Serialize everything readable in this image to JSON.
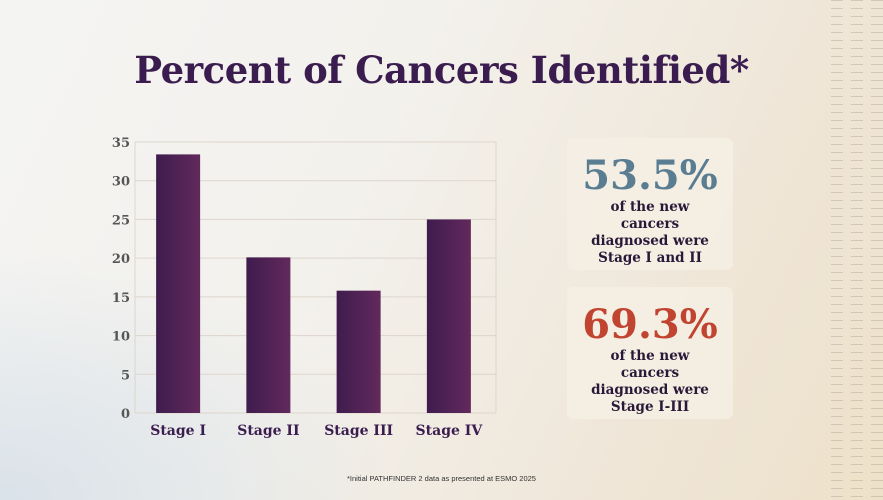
{
  "title": "Percent of Cancers Identified*",
  "chart_data": {
    "type": "bar",
    "title": "Percent of Cancers Identified*",
    "categories": [
      "Stage I",
      "Stage II",
      "Stage III",
      "Stage IV"
    ],
    "values": [
      33.4,
      20.1,
      15.8,
      25.0
    ],
    "ylim": [
      0,
      35
    ],
    "yticks": [
      "0",
      "5",
      "10",
      "15",
      "20",
      "25",
      "30",
      "35"
    ],
    "grid": true,
    "bar_color": "#4f2356"
  },
  "cards": [
    {
      "value": "53.5%",
      "text": "of the new cancers diagnosed were Stage I and II",
      "color": "#5a7d92"
    },
    {
      "value": "69.3%",
      "text": "of the new cancers diagnosed were Stage I-III",
      "color": "#c04430"
    }
  ],
  "footnote": "*Initial PATHFINDER 2 data as presented at ESMO 2025"
}
